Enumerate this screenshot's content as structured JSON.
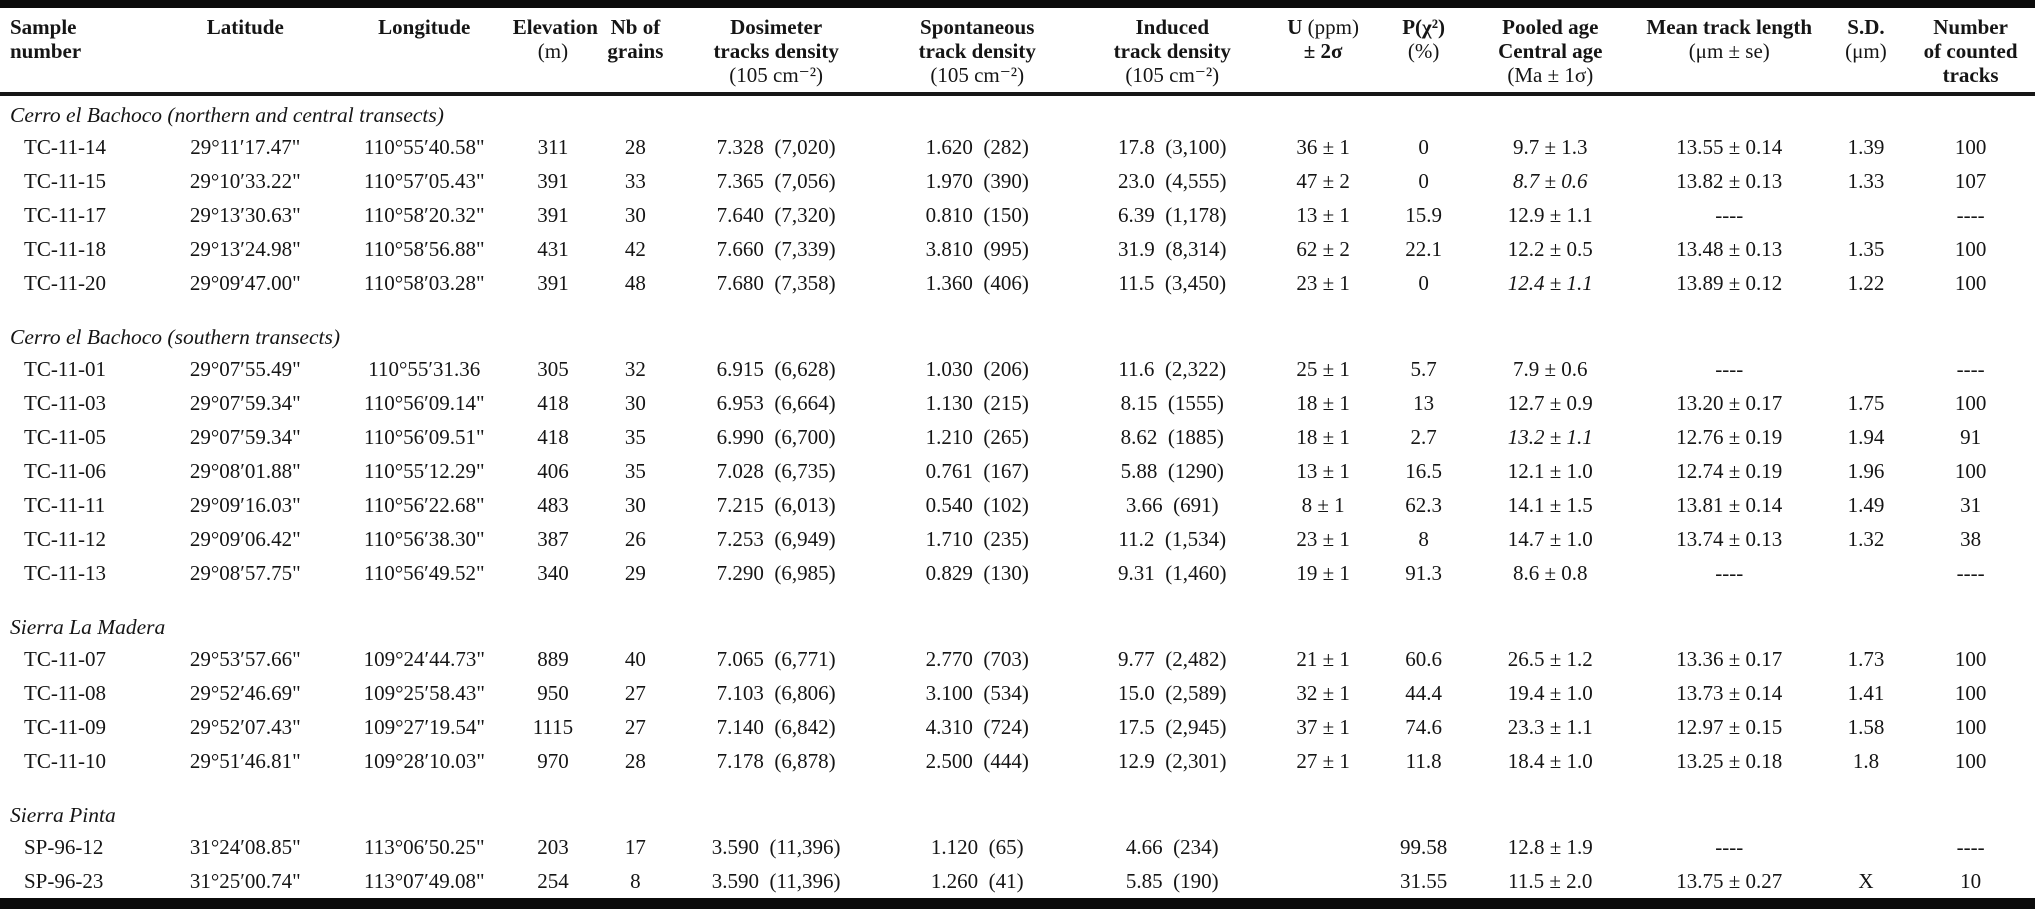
{
  "table": {
    "columns": [
      {
        "id": "sample-number",
        "align": "left",
        "width": 7.6,
        "lines": [
          [
            [
              "Sample",
              true
            ]
          ],
          [
            [
              "number",
              true
            ]
          ]
        ]
      },
      {
        "id": "latitude",
        "align": "center",
        "width": 9.2,
        "lines": [
          [
            [
              "Latitude",
              true
            ]
          ]
        ]
      },
      {
        "id": "longitude",
        "align": "center",
        "width": 8.6,
        "lines": [
          [
            [
              "Longitude",
              true
            ]
          ]
        ]
      },
      {
        "id": "elevation",
        "align": "center",
        "width": 4.2,
        "lines": [
          [
            [
              "Elevation",
              true
            ]
          ],
          [
            [
              "(m)",
              false
            ]
          ]
        ]
      },
      {
        "id": "nb-grains",
        "align": "center",
        "width": 4.0,
        "lines": [
          [
            [
              "Nb of",
              true
            ]
          ],
          [
            [
              "grains",
              true
            ]
          ]
        ]
      },
      {
        "id": "dosimeter-density",
        "align": "center",
        "width": 10.0,
        "lines": [
          [
            [
              "Dosimeter",
              true
            ]
          ],
          [
            [
              "tracks density",
              true
            ]
          ],
          [
            [
              "(105 cm⁻²)",
              false
            ]
          ]
        ]
      },
      {
        "id": "spontaneous-density",
        "align": "center",
        "width": 10.0,
        "lines": [
          [
            [
              "Spontaneous",
              true
            ]
          ],
          [
            [
              "track density",
              true
            ]
          ],
          [
            [
              "(105 cm⁻²)",
              false
            ]
          ]
        ]
      },
      {
        "id": "induced-density",
        "align": "center",
        "width": 9.4,
        "lines": [
          [
            [
              "Induced",
              true
            ]
          ],
          [
            [
              "track density",
              true
            ]
          ],
          [
            [
              "(105 cm⁻²)",
              false
            ]
          ]
        ]
      },
      {
        "id": "uranium",
        "align": "center",
        "width": 5.6,
        "lines": [
          [
            [
              "U ",
              true
            ],
            [
              "(ppm)",
              false
            ]
          ],
          [
            [
              "± 2σ",
              true
            ]
          ]
        ]
      },
      {
        "id": "p-chi2",
        "align": "center",
        "width": 4.4,
        "lines": [
          [
            [
              "P(χ²)",
              true
            ]
          ],
          [
            [
              "(%)",
              false
            ]
          ]
        ]
      },
      {
        "id": "age",
        "align": "center",
        "width": 8.2,
        "lines": [
          [
            [
              "Pooled age",
              true
            ]
          ],
          [
            [
              "Central age",
              true
            ]
          ],
          [
            [
              "(Ma ± 1σ)",
              false
            ]
          ]
        ]
      },
      {
        "id": "mean-track-length",
        "align": "center",
        "width": 9.6,
        "lines": [
          [
            [
              "Mean track length",
              true
            ]
          ],
          [
            [
              "(μm ± se)",
              false
            ]
          ]
        ]
      },
      {
        "id": "sd",
        "align": "center",
        "width": 4.0,
        "lines": [
          [
            [
              "S.D.",
              true
            ]
          ],
          [
            [
              "(μm)",
              false
            ]
          ]
        ]
      },
      {
        "id": "counted-tracks",
        "align": "center",
        "width": 6.4,
        "lines": [
          [
            [
              "Number",
              true
            ]
          ],
          [
            [
              "of counted",
              true
            ]
          ],
          [
            [
              "tracks",
              true
            ]
          ]
        ]
      }
    ],
    "sections": [
      {
        "title": "Cerro el Bachoco (northern and central transects)",
        "rows": [
          [
            "TC-11-14",
            "29°11′17.47\"",
            "110°55′40.58\"",
            "311",
            "28",
            "7.328  (7,020)",
            "1.620  (282)",
            "17.8  (3,100)",
            "36 ± 1",
            "0",
            "9.7 ± 1.3",
            "13.55 ± 0.14",
            "1.39",
            "100"
          ],
          [
            "TC-11-15",
            "29°10′33.22\"",
            "110°57′05.43\"",
            "391",
            "33",
            "7.365  (7,056)",
            "1.970  (390)",
            "23.0  (4,555)",
            "47 ± 2",
            "0",
            {
              "t": "8.7 ± 0.6",
              "i": true
            },
            "13.82 ± 0.13",
            "1.33",
            "107"
          ],
          [
            "TC-11-17",
            "29°13′30.63\"",
            "110°58′20.32\"",
            "391",
            "30",
            "7.640  (7,320)",
            "0.810  (150)",
            "6.39  (1,178)",
            "13 ± 1",
            "15.9",
            "12.9 ± 1.1",
            "----",
            "",
            "----"
          ],
          [
            "TC-11-18",
            "29°13′24.98\"",
            "110°58′56.88\"",
            "431",
            "42",
            "7.660  (7,339)",
            "3.810  (995)",
            "31.9  (8,314)",
            "62 ± 2",
            "22.1",
            "12.2 ± 0.5",
            "13.48 ± 0.13",
            "1.35",
            "100"
          ],
          [
            "TC-11-20",
            "29°09′47.00\"",
            "110°58′03.28\"",
            "391",
            "48",
            "7.680  (7,358)",
            "1.360  (406)",
            "11.5  (3,450)",
            "23 ± 1",
            "0",
            {
              "t": "12.4 ± 1.1",
              "i": true
            },
            "13.89 ± 0.12",
            "1.22",
            "100"
          ]
        ]
      },
      {
        "title": "Cerro el Bachoco (southern transects)",
        "rows": [
          [
            "TC-11-01",
            "29°07′55.49\"",
            "110°55′31.36",
            "305",
            "32",
            "6.915  (6,628)",
            "1.030  (206)",
            "11.6  (2,322)",
            "25 ± 1",
            "5.7",
            "7.9 ± 0.6",
            "----",
            "",
            "----"
          ],
          [
            "TC-11-03",
            "29°07′59.34\"",
            "110°56′09.14\"",
            "418",
            "30",
            "6.953  (6,664)",
            "1.130  (215)",
            "8.15  (1555)",
            "18 ± 1",
            "13",
            "12.7 ± 0.9",
            "13.20 ± 0.17",
            "1.75",
            "100"
          ],
          [
            "TC-11-05",
            "29°07′59.34\"",
            "110°56′09.51\"",
            "418",
            "35",
            "6.990  (6,700)",
            "1.210  (265)",
            "8.62  (1885)",
            "18 ± 1",
            "2.7",
            {
              "t": "13.2 ± 1.1",
              "i": true
            },
            "12.76 ± 0.19",
            "1.94",
            "91"
          ],
          [
            "TC-11-06",
            "29°08′01.88\"",
            "110°55′12.29\"",
            "406",
            "35",
            "7.028  (6,735)",
            "0.761  (167)",
            "5.88  (1290)",
            "13 ± 1",
            "16.5",
            "12.1 ± 1.0",
            "12.74 ± 0.19",
            "1.96",
            "100"
          ],
          [
            "TC-11-11",
            "29°09′16.03\"",
            "110°56′22.68\"",
            "483",
            "30",
            "7.215  (6,013)",
            "0.540  (102)",
            "3.66  (691)",
            "8 ± 1",
            "62.3",
            "14.1 ± 1.5",
            "13.81 ± 0.14",
            "1.49",
            "31"
          ],
          [
            "TC-11-12",
            "29°09′06.42\"",
            "110°56′38.30\"",
            "387",
            "26",
            "7.253  (6,949)",
            "1.710  (235)",
            "11.2  (1,534)",
            "23 ± 1",
            "8",
            "14.7 ± 1.0",
            "13.74 ± 0.13",
            "1.32",
            "38"
          ],
          [
            "TC-11-13",
            "29°08′57.75\"",
            "110°56′49.52\"",
            "340",
            "29",
            "7.290  (6,985)",
            "0.829  (130)",
            "9.31  (1,460)",
            "19 ± 1",
            "91.3",
            "8.6 ± 0.8",
            "----",
            "",
            "----"
          ]
        ]
      },
      {
        "title": "Sierra La Madera",
        "rows": [
          [
            "TC-11-07",
            "29°53′57.66\"",
            "109°24′44.73\"",
            "889",
            "40",
            "7.065  (6,771)",
            "2.770  (703)",
            "9.77  (2,482)",
            "21 ± 1",
            "60.6",
            "26.5 ± 1.2",
            "13.36 ± 0.17",
            "1.73",
            "100"
          ],
          [
            "TC-11-08",
            "29°52′46.69\"",
            "109°25′58.43\"",
            "950",
            "27",
            "7.103  (6,806)",
            "3.100  (534)",
            "15.0  (2,589)",
            "32 ± 1",
            "44.4",
            "19.4 ± 1.0",
            "13.73 ± 0.14",
            "1.41",
            "100"
          ],
          [
            "TC-11-09",
            "29°52′07.43\"",
            "109°27′19.54\"",
            "1115",
            "27",
            "7.140  (6,842)",
            "4.310  (724)",
            "17.5  (2,945)",
            "37 ± 1",
            "74.6",
            "23.3 ± 1.1",
            "12.97 ± 0.15",
            "1.58",
            "100"
          ],
          [
            "TC-11-10",
            "29°51′46.81\"",
            "109°28′10.03\"",
            "970",
            "28",
            "7.178  (6,878)",
            "2.500  (444)",
            "12.9  (2,301)",
            "27 ± 1",
            "11.8",
            "18.4 ± 1.0",
            "13.25 ± 0.18",
            "1.8",
            "100"
          ]
        ]
      },
      {
        "title": "Sierra Pinta",
        "rows": [
          [
            "SP-96-12",
            "31°24′08.85\"",
            "113°06′50.25\"",
            "203",
            "17",
            "3.590  (11,396)",
            "1.120  (65)",
            "4.66  (234)",
            "",
            "99.58",
            "12.8 ± 1.9",
            "----",
            "",
            "----"
          ],
          [
            "SP-96-23",
            "31°25′00.74\"",
            "113°07′49.08\"",
            "254",
            "8",
            "3.590  (11,396)",
            "1.260  (41)",
            "5.85  (190)",
            "",
            "31.55",
            "11.5 ± 2.0",
            "13.75 ± 0.27",
            "X",
            "10"
          ]
        ]
      }
    ]
  }
}
